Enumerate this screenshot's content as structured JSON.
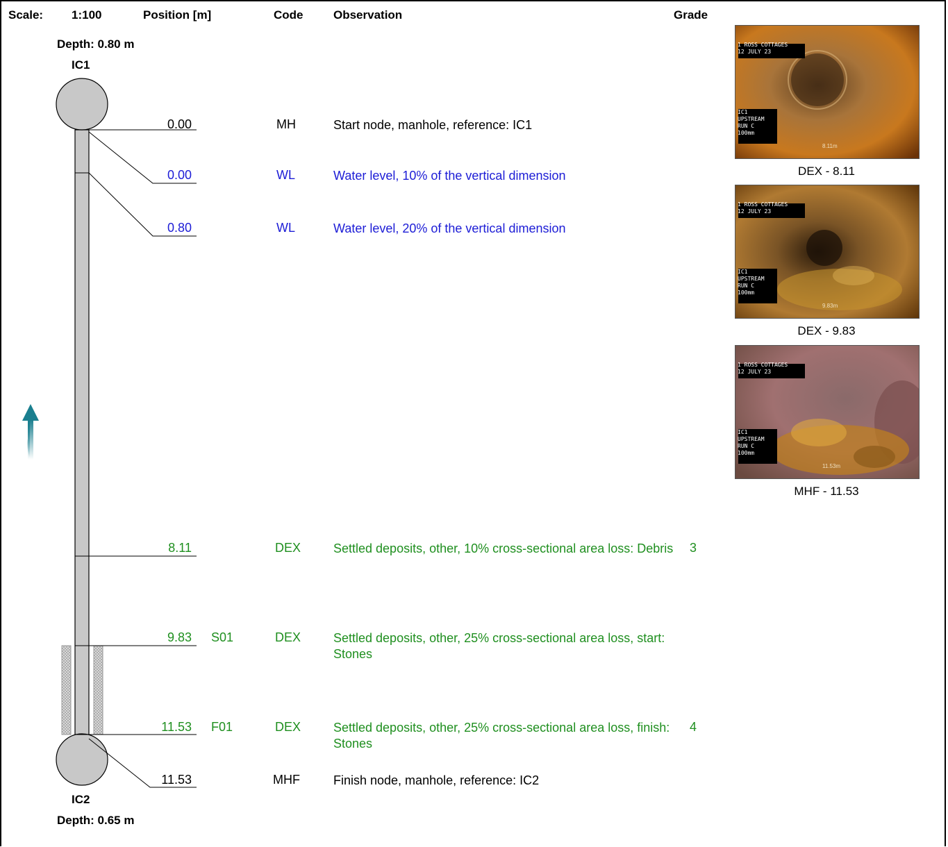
{
  "header": {
    "scale_label": "Scale:",
    "scale_value": "1:100",
    "position_label": "Position [m]",
    "code_label": "Code",
    "observation_label": "Observation",
    "grade_label": "Grade"
  },
  "start_node": {
    "depth": "Depth: 0.80 m",
    "name": "IC1"
  },
  "finish_node": {
    "depth": "Depth: 0.65 m",
    "name": "IC2"
  },
  "observations": [
    {
      "position": "0.00",
      "continuous": "",
      "code": "MH",
      "text": "Start node, manhole, reference: IC1",
      "grade": "",
      "color": "#000000"
    },
    {
      "position": "0.00",
      "continuous": "",
      "code": "WL",
      "text": "Water level, 10% of the vertical dimension",
      "grade": "",
      "color": "#1c1cd6"
    },
    {
      "position": "0.80",
      "continuous": "",
      "code": "WL",
      "text": "Water level, 20% of the vertical dimension",
      "grade": "",
      "color": "#1c1cd6"
    },
    {
      "position": "8.11",
      "continuous": "",
      "code": "DEX",
      "text": "Settled deposits, other, 10% cross-sectional area loss: Debris",
      "grade": "3",
      "color": "#1f8f1f"
    },
    {
      "position": "9.83",
      "continuous": "S01",
      "code": "DEX",
      "text": "Settled deposits, other, 25% cross-sectional area loss, start: Stones",
      "grade": "",
      "color": "#1f8f1f"
    },
    {
      "position": "11.53",
      "continuous": "F01",
      "code": "DEX",
      "text": "Settled deposits, other, 25% cross-sectional area loss, finish: Stones",
      "grade": "4",
      "color": "#1f8f1f"
    },
    {
      "position": "11.53",
      "continuous": "",
      "code": "MHF",
      "text": "Finish node, manhole, reference: IC2",
      "grade": "",
      "color": "#000000"
    }
  ],
  "photos": [
    {
      "caption": "DEX - 8.11",
      "overlay_top": [
        "1 ROSS COTTAGES",
        "12 JULY 23"
      ],
      "overlay_bottom": [
        "IC1",
        "UPSTREAM",
        "RUN C",
        "100mm"
      ],
      "distance": "8.11m"
    },
    {
      "caption": "DEX - 9.83",
      "overlay_top": [
        "1 ROSS COTTAGES",
        "12 JULY 23"
      ],
      "overlay_bottom": [
        "IC1",
        "UPSTREAM",
        "RUN C",
        "100mm"
      ],
      "distance": "9.83m"
    },
    {
      "caption": "MHF - 11.53",
      "overlay_top": [
        "1 ROSS COTTAGES",
        "12 JULY 23"
      ],
      "overlay_bottom": [
        "IC1",
        "UPSTREAM",
        "RUN C",
        "100mm"
      ],
      "distance": "11.53m"
    }
  ],
  "colors": {
    "pipe": "#c8c8c8",
    "manhole": "#c8c8c8",
    "flow_arrow": "#1a7f8f",
    "blue": "#1c1cd6",
    "green": "#1f8f1f"
  },
  "icons": {
    "flow_direction": "upward-flow-arrow-icon"
  }
}
